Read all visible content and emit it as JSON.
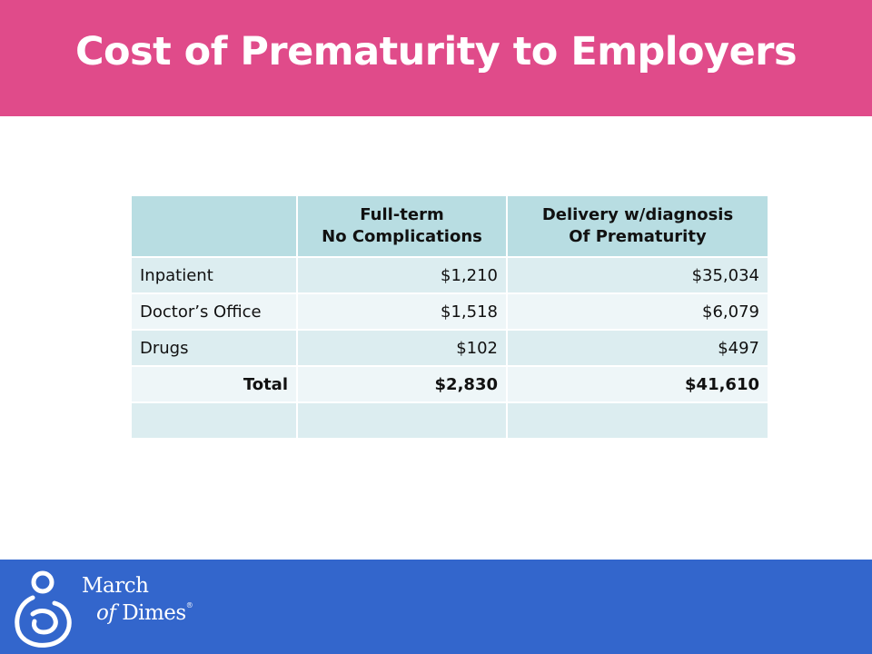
{
  "slide": {
    "title": "Cost of Prematurity to Employers"
  },
  "table": {
    "headers": {
      "col1": "",
      "col2_line1": "Full-term",
      "col2_line2": "No Complications",
      "col3_line1": "Delivery w/diagnosis",
      "col3_line2": "Of Prematurity"
    },
    "rows": [
      {
        "label": "Inpatient",
        "full_term": "$1,210",
        "premature": "$35,034"
      },
      {
        "label": "Doctor’s Office",
        "full_term": "$1,518",
        "premature": "$6,079"
      },
      {
        "label": "Drugs",
        "full_term": "$102",
        "premature": "$497"
      },
      {
        "label": "Total",
        "full_term": "$2,830",
        "premature": "$41,610"
      },
      {
        "label": "",
        "full_term": "",
        "premature": ""
      }
    ]
  },
  "footer": {
    "logo_line1": "March",
    "logo_of": "of",
    "logo_dimes": "Dimes",
    "logo_mark": "®"
  },
  "colors": {
    "title_bar": "#e04b8a",
    "footer_bar": "#3366cc",
    "header_cells": "#b8dde2",
    "row_dark": "#dcedf0",
    "row_light": "#eef6f8"
  }
}
